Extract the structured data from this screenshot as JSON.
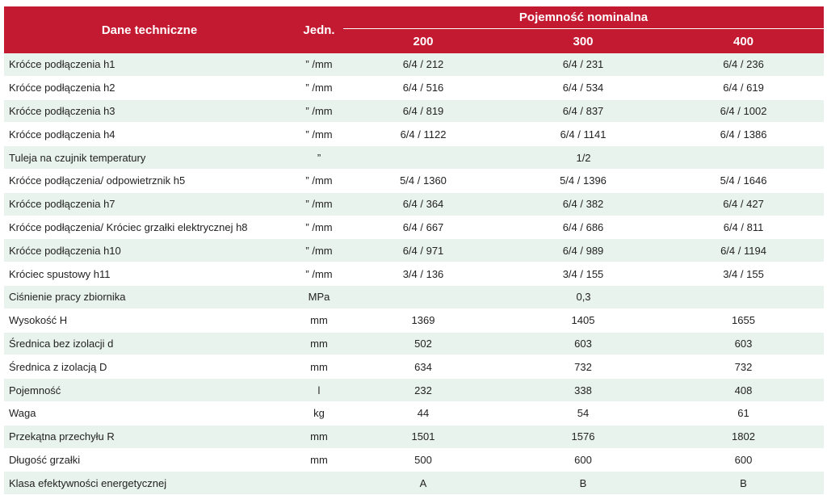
{
  "header": {
    "param": "Dane techniczne",
    "unit": "Jedn.",
    "group": "Pojemność nominalna",
    "capacities": [
      "200",
      "300",
      "400"
    ]
  },
  "rows": [
    {
      "name": "Króćce podłączenia h1",
      "unit": "” /mm",
      "values": [
        "6/4  /  212",
        "6/4  /  231",
        "6/4  /  236"
      ]
    },
    {
      "name": "Króćce podłączenia h2",
      "unit": "” /mm",
      "values": [
        "6/4  /  516",
        "6/4  /  534",
        "6/4  /  619"
      ]
    },
    {
      "name": "Króćce podłączenia h3",
      "unit": "” /mm",
      "values": [
        "6/4  /  819",
        "6/4  /  837",
        "6/4  /  1002"
      ]
    },
    {
      "name": "Króćce podłączenia h4",
      "unit": "” /mm",
      "values": [
        "6/4  /  1122",
        "6/4  /  1141",
        "6/4  /  1386"
      ]
    },
    {
      "name": "Tuleja na czujnik temperatury",
      "unit": "”",
      "merged": "1/2"
    },
    {
      "name": "Króćce podłączenia/ odpowietrznik h5",
      "unit": "” /mm",
      "values": [
        "5/4  /  1360",
        "5/4  /  1396",
        "5/4  /  1646"
      ]
    },
    {
      "name": "Króćce podłączenia h7",
      "unit": "” /mm",
      "values": [
        "6/4  /  364",
        "6/4  /  382",
        "6/4  /  427"
      ]
    },
    {
      "name": "Króćce podłączenia/ Króciec grzałki elektrycznej h8",
      "unit": "” /mm",
      "values": [
        "6/4  /  667",
        "6/4  /  686",
        "6/4  /  811"
      ]
    },
    {
      "name": "Króćce podłączenia h10",
      "unit": "” /mm",
      "values": [
        "6/4  /  971",
        "6/4  /  989",
        "6/4  /  1194"
      ]
    },
    {
      "name": "Króciec spustowy h11",
      "unit": "” /mm",
      "values": [
        "3/4  /  136",
        "3/4  /  155",
        "3/4  /  155"
      ]
    },
    {
      "name": "Ciśnienie pracy zbiornika",
      "unit": "MPa",
      "merged": "0,3"
    },
    {
      "name": "Wysokość H",
      "unit": "mm",
      "values": [
        "1369",
        "1405",
        "1655"
      ]
    },
    {
      "name": "Średnica bez izolacji d",
      "unit": "mm",
      "values": [
        "502",
        "603",
        "603"
      ]
    },
    {
      "name": "Średnica z izolacją D",
      "unit": "mm",
      "values": [
        "634",
        "732",
        "732"
      ]
    },
    {
      "name": "Pojemność",
      "unit": "l",
      "values": [
        "232",
        "338",
        "408"
      ]
    },
    {
      "name": "Waga",
      "unit": "kg",
      "values": [
        "44",
        "54",
        "61"
      ]
    },
    {
      "name": "Przekątna przechyłu R",
      "unit": "mm",
      "values": [
        "1501",
        "1576",
        "1802"
      ]
    },
    {
      "name": "Długość grzałki",
      "unit": "mm",
      "values": [
        "500",
        "600",
        "600"
      ]
    },
    {
      "name": "Klasa efektywności energetycznej",
      "unit": "",
      "values": [
        "A",
        "B",
        "B"
      ]
    }
  ]
}
